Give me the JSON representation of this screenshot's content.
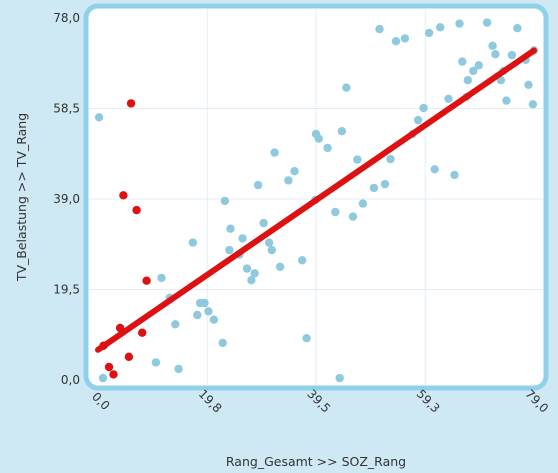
{
  "chart_data": {
    "type": "scatter",
    "title": "",
    "xlabel": "Rang_Gesamt >> SOZ_Rang",
    "ylabel": "TV_Belastung >> TV_Rang",
    "xlim": [
      0,
      79.0
    ],
    "ylim": [
      0,
      78.0
    ],
    "x_ticks": [
      "0,0",
      "19,8",
      "39,5",
      "59,3",
      "79,0"
    ],
    "x_tick_values": [
      0,
      19.8,
      39.5,
      59.3,
      79.0
    ],
    "y_ticks": [
      "78,0",
      "58,5",
      "39,0",
      "19,5",
      "0,0"
    ],
    "y_tick_values": [
      78.0,
      58.5,
      39.0,
      19.5,
      0.0
    ],
    "grid": true,
    "colors": {
      "background": "#cfe9f4",
      "frame": "#8fd0ea",
      "plot": "#ffffff",
      "grid": "#e2eef5",
      "points": "#8ec9de",
      "highlight": "#dd1111",
      "trend": "#dd1111",
      "text": "#333333"
    },
    "trendline": {
      "x": [
        0,
        79.0
      ],
      "y": [
        6.5,
        71.0
      ]
    },
    "series": [
      {
        "role": "blue",
        "points": [
          [
            0.2,
            56.6
          ],
          [
            0.9,
            0.4
          ],
          [
            10.5,
            3.8
          ],
          [
            11.5,
            22.0
          ],
          [
            13.0,
            17.7
          ],
          [
            14.0,
            12.0
          ],
          [
            14.6,
            2.4
          ],
          [
            17.2,
            29.6
          ],
          [
            18.0,
            14.0
          ],
          [
            18.5,
            16.6
          ],
          [
            19.3,
            16.6
          ],
          [
            20.0,
            14.8
          ],
          [
            21.0,
            13.0
          ],
          [
            22.6,
            8.0
          ],
          [
            23.0,
            38.6
          ],
          [
            23.8,
            28.0
          ],
          [
            24.0,
            32.6
          ],
          [
            25.6,
            27.0
          ],
          [
            26.2,
            30.5
          ],
          [
            27.0,
            24.0
          ],
          [
            27.8,
            21.5
          ],
          [
            28.4,
            23.0
          ],
          [
            29.0,
            42.0
          ],
          [
            30.0,
            33.8
          ],
          [
            31.0,
            29.6
          ],
          [
            31.5,
            28.0
          ],
          [
            32.0,
            49.0
          ],
          [
            33.0,
            24.4
          ],
          [
            34.5,
            43.0
          ],
          [
            35.6,
            45.0
          ],
          [
            37.0,
            25.8
          ],
          [
            37.8,
            9.0
          ],
          [
            39.4,
            38.8
          ],
          [
            39.5,
            53.0
          ],
          [
            40.0,
            52.0
          ],
          [
            41.6,
            50.0
          ],
          [
            43.0,
            36.2
          ],
          [
            43.8,
            0.4
          ],
          [
            44.2,
            53.6
          ],
          [
            45.0,
            63.0
          ],
          [
            46.2,
            35.2
          ],
          [
            47.0,
            47.5
          ],
          [
            48.0,
            38.0
          ],
          [
            50.0,
            41.4
          ],
          [
            51.0,
            75.6
          ],
          [
            52.0,
            42.2
          ],
          [
            53.0,
            47.6
          ],
          [
            54.0,
            73.0
          ],
          [
            55.6,
            73.6
          ],
          [
            57.0,
            53.0
          ],
          [
            58.0,
            56.0
          ],
          [
            59.0,
            58.6
          ],
          [
            60.0,
            74.8
          ],
          [
            61.0,
            45.4
          ],
          [
            62.0,
            76.0
          ],
          [
            63.5,
            60.6
          ],
          [
            64.6,
            44.2
          ],
          [
            65.5,
            76.8
          ],
          [
            66.0,
            68.6
          ],
          [
            66.8,
            61.0
          ],
          [
            67.0,
            64.6
          ],
          [
            68.0,
            66.6
          ],
          [
            69.0,
            67.8
          ],
          [
            70.5,
            77.0
          ],
          [
            71.5,
            72.0
          ],
          [
            72.0,
            70.2
          ],
          [
            73.0,
            64.6
          ],
          [
            73.5,
            66.6
          ],
          [
            74.0,
            60.2
          ],
          [
            75.0,
            70.0
          ],
          [
            76.0,
            75.8
          ],
          [
            77.5,
            69.0
          ],
          [
            78.0,
            63.6
          ],
          [
            78.8,
            59.4
          ],
          [
            79.0,
            71.0
          ]
        ]
      },
      {
        "role": "red",
        "points": [
          [
            1.0,
            7.4
          ],
          [
            2.0,
            2.8
          ],
          [
            2.8,
            1.2
          ],
          [
            4.0,
            11.2
          ],
          [
            4.6,
            39.8
          ],
          [
            5.6,
            5.0
          ],
          [
            6.0,
            59.6
          ],
          [
            7.0,
            36.6
          ],
          [
            8.0,
            10.2
          ],
          [
            8.8,
            21.4
          ]
        ]
      }
    ]
  }
}
